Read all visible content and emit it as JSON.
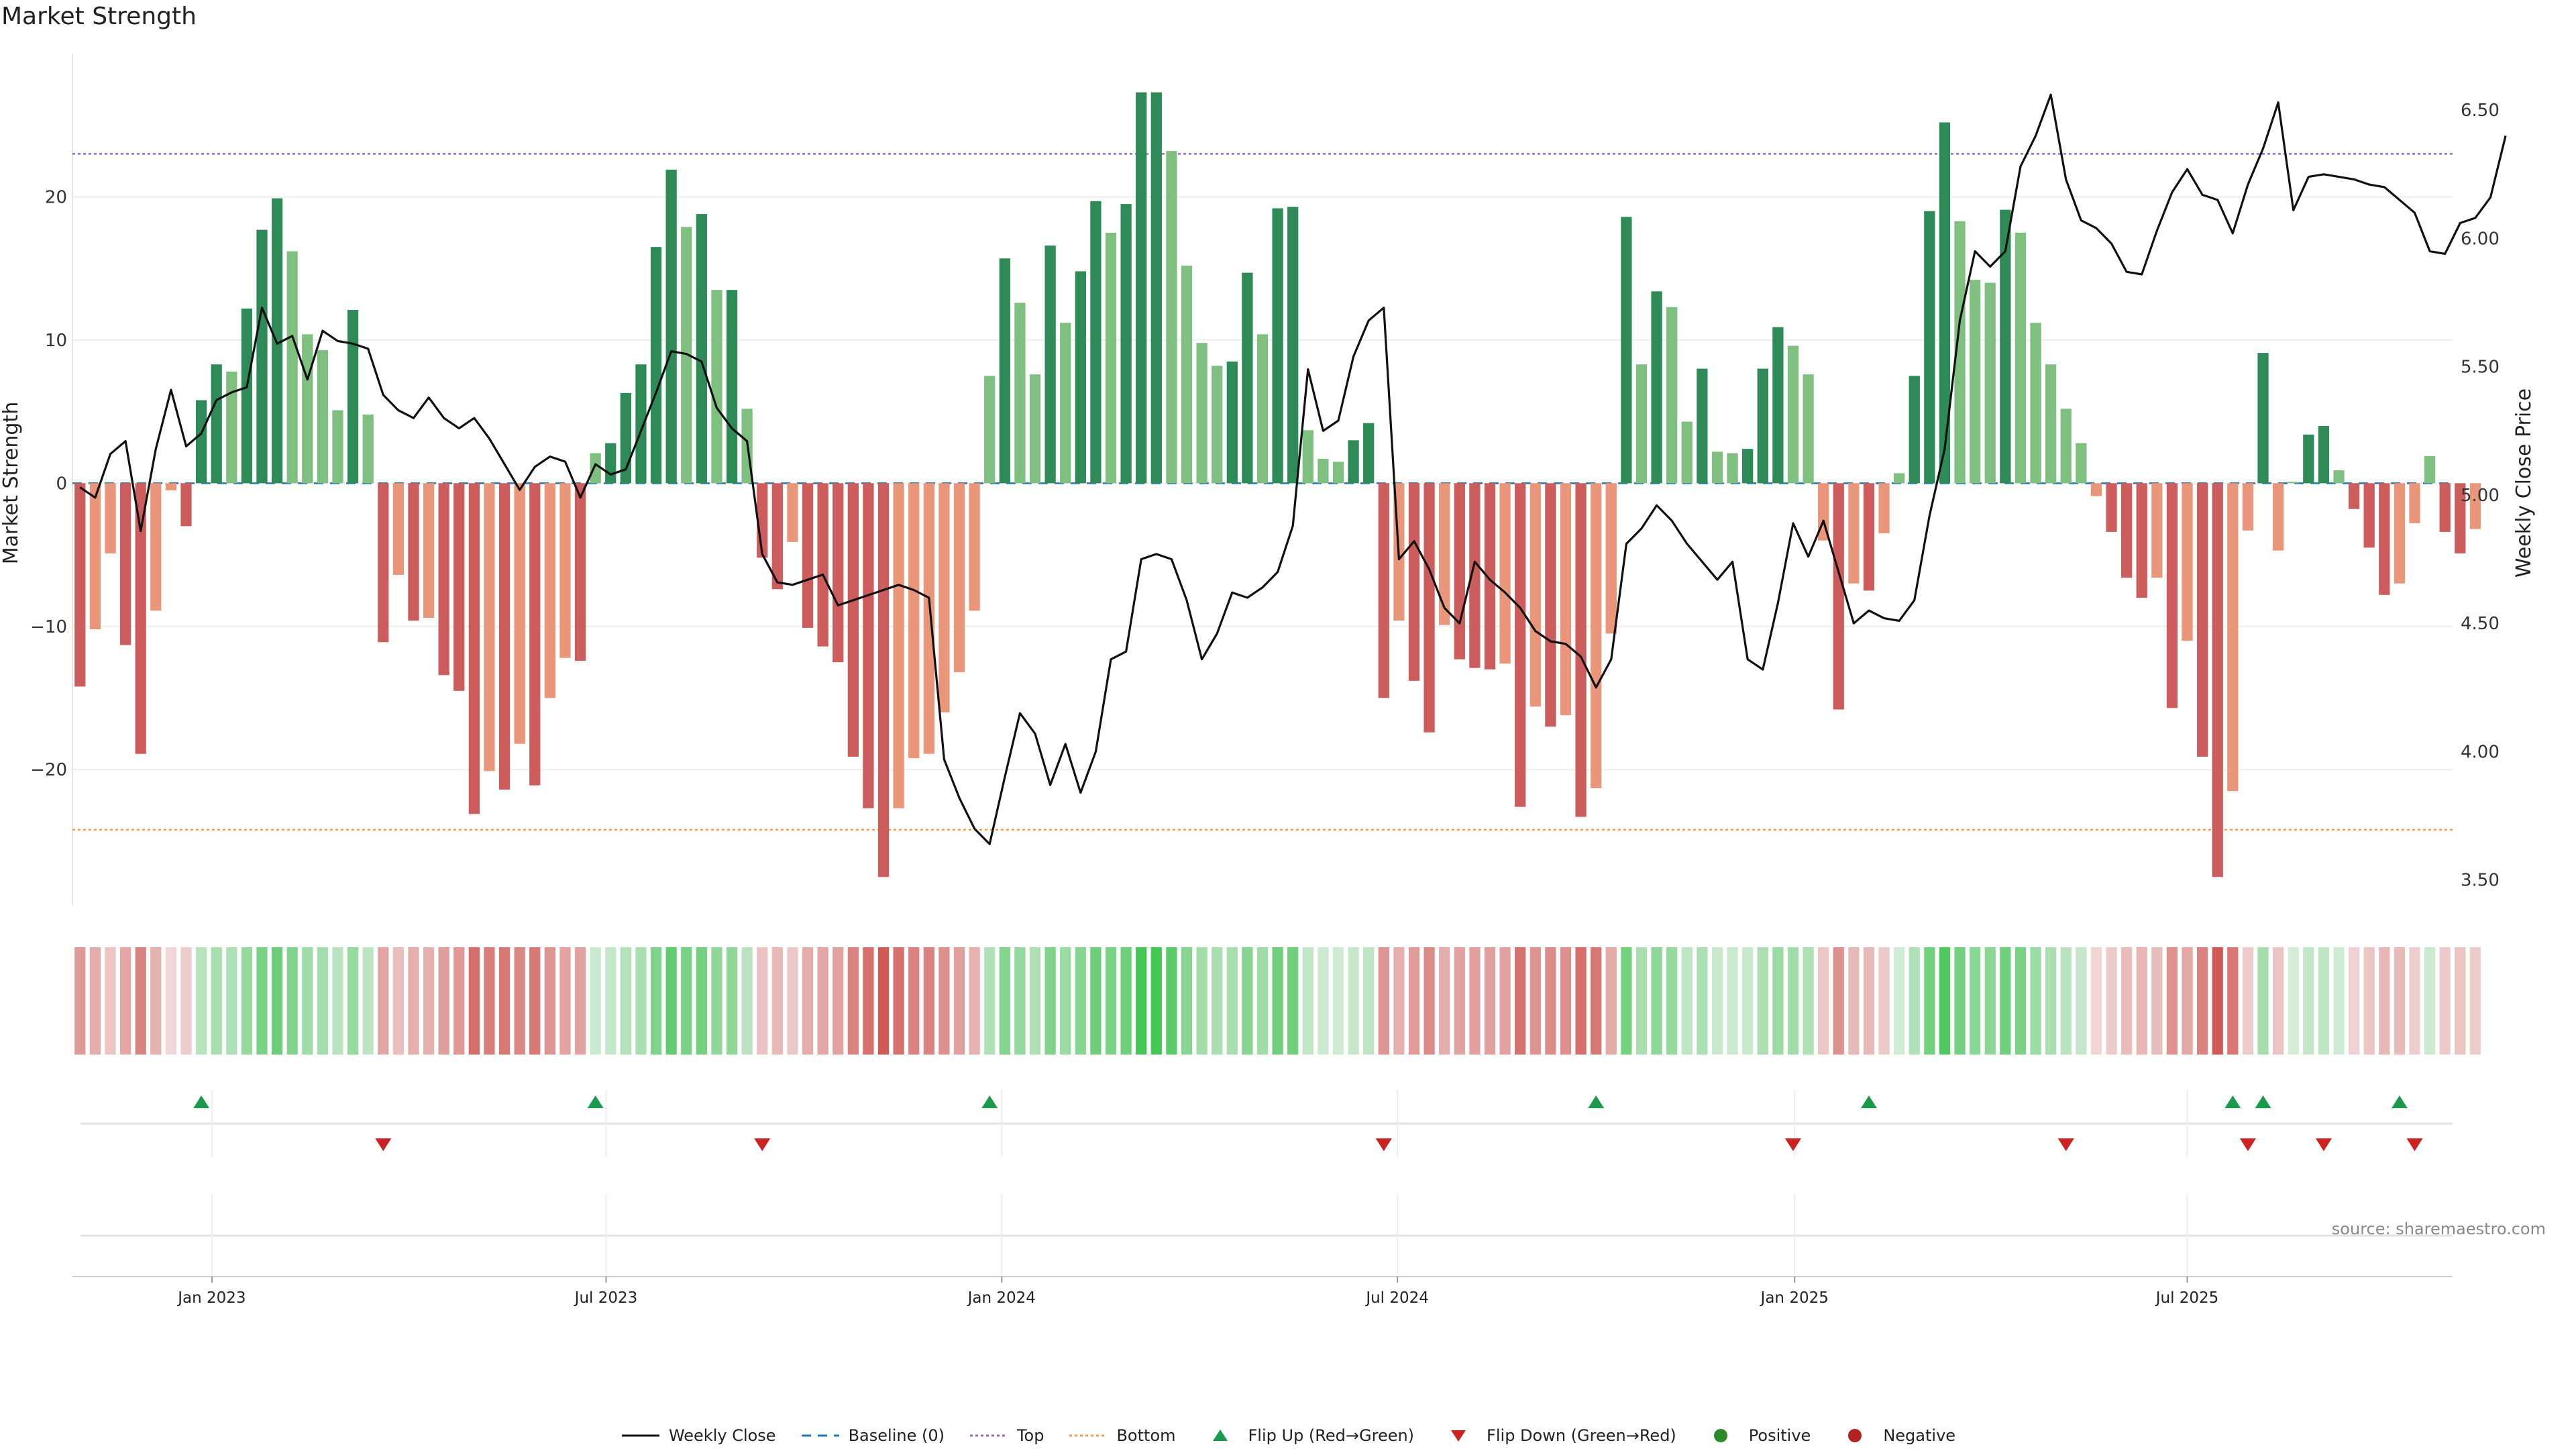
{
  "title": "Market Strength",
  "source": "source: sharemaestro.com",
  "colors": {
    "strong_green": "#2e8b57",
    "light_green": "#7fbf7f",
    "strong_red": "#cd5c5c",
    "light_red": "#e9967a",
    "line": "#111111",
    "baseline": "#1f77b4",
    "top": "#9467bd",
    "bottom": "#ff9a4d",
    "flip_up": "#1a9a4a",
    "flip_down": "#cc2222",
    "positive": "#2a8a2a",
    "negative": "#b22222"
  },
  "legend": [
    {
      "key": "line",
      "label": "Weekly Close"
    },
    {
      "key": "baseline",
      "label": "Baseline (0)"
    },
    {
      "key": "top",
      "label": "Top"
    },
    {
      "key": "bottom",
      "label": "Bottom"
    },
    {
      "key": "flip_up",
      "label": "Flip Up (Red→Green)"
    },
    {
      "key": "flip_down",
      "label": "Flip Down (Green→Red)"
    },
    {
      "key": "positive",
      "label": "Positive"
    },
    {
      "key": "negative",
      "label": "Negative"
    }
  ],
  "chart_data": {
    "type": "bar",
    "title": "Market Strength",
    "ylabel": "Market Strength",
    "y2label": "Weekly Close Price",
    "ylim": [
      -29.5,
      30
    ],
    "y2lim": [
      3.4,
      6.72
    ],
    "yticks": [
      -20,
      -10,
      0,
      10,
      20
    ],
    "y2ticks": [
      "3.50",
      "4.00",
      "4.50",
      "5.00",
      "5.50",
      "6.00",
      "6.50"
    ],
    "xlim": [
      0,
      157
    ],
    "x_ticks": [
      {
        "label": "Jan 2023",
        "week": 9.2
      },
      {
        "label": "Jul 2023",
        "week": 35.2
      },
      {
        "label": "Jan 2024",
        "week": 61.3
      },
      {
        "label": "Jul 2024",
        "week": 87.4
      },
      {
        "label": "Jan 2025",
        "week": 113.6
      },
      {
        "label": "Jul 2025",
        "week": 139.5
      }
    ],
    "top_level": 23,
    "bottom_level": -24.2,
    "baseline": 0,
    "strength": [
      -14.2,
      -10.2,
      -4.9,
      -11.3,
      -18.9,
      -8.9,
      -0.5,
      -3,
      5.8,
      8.3,
      7.8,
      12.2,
      17.7,
      19.9,
      16.2,
      10.4,
      9.3,
      5.1,
      12.1,
      4.8,
      -11.1,
      -6.4,
      -9.6,
      -9.4,
      -13.4,
      -14.5,
      -23.1,
      -20.1,
      -21.4,
      -18.2,
      -21.1,
      -15,
      -12.2,
      -12.4,
      2.1,
      2.8,
      6.3,
      8.3,
      16.5,
      21.9,
      17.9,
      18.8,
      13.5,
      13.5,
      5.2,
      -5.2,
      -7.4,
      -4.1,
      -10.1,
      -11.4,
      -12.5,
      -19.1,
      -22.7,
      -27.5,
      -22.7,
      -19.2,
      -18.9,
      -16,
      -13.2,
      -8.9,
      7.5,
      15.7,
      12.6,
      7.6,
      16.6,
      11.2,
      14.8,
      19.7,
      17.5,
      19.5,
      27.3,
      27.3,
      23.2,
      15.2,
      9.8,
      8.2,
      8.5,
      14.7,
      10.4,
      19.2,
      19.3,
      3.7,
      1.7,
      1.5,
      3,
      4.2,
      -15,
      -9.6,
      -13.8,
      -17.4,
      -9.9,
      -12.3,
      -12.9,
      -13,
      -12.6,
      -22.6,
      -15.6,
      -17,
      -16.2,
      -23.3,
      -21.3,
      -10.5,
      18.6,
      8.3,
      13.4,
      12.3,
      4.3,
      8,
      2.2,
      2.1,
      2.4,
      8,
      10.9,
      9.6,
      7.6,
      -4,
      -15.8,
      -7,
      -7.5,
      -3.5,
      0.7,
      7.5,
      19,
      25.2,
      18.3,
      14.2,
      14,
      19.1,
      17.5,
      11.2,
      8.3,
      5.2,
      2.8,
      -0.9,
      -3.4,
      -6.6,
      -8,
      -6.6,
      -15.7,
      -11,
      -19.1,
      -27.5,
      -21.5,
      -3.3,
      9.1,
      -4.7,
      0.1,
      3.4,
      4,
      0.9,
      -1.8,
      -4.5,
      -7.8,
      -7,
      -2.8,
      1.9,
      -3.4,
      -4.9,
      -3.2
    ],
    "weekly_close": [
      5.03,
      4.99,
      5.16,
      5.21,
      4.86,
      5.18,
      5.41,
      5.19,
      5.24,
      5.37,
      5.4,
      5.42,
      5.73,
      5.59,
      5.62,
      5.45,
      5.64,
      5.6,
      5.59,
      5.57,
      5.39,
      5.33,
      5.3,
      5.38,
      5.3,
      5.26,
      5.3,
      5.22,
      5.12,
      5.02,
      5.11,
      5.15,
      5.13,
      4.99,
      5.12,
      5.08,
      5.1,
      5.25,
      5.4,
      5.56,
      5.55,
      5.52,
      5.34,
      5.26,
      5.21,
      4.77,
      4.66,
      4.65,
      4.67,
      4.69,
      4.57,
      4.59,
      4.61,
      4.63,
      4.65,
      4.63,
      4.6,
      3.97,
      3.82,
      3.7,
      3.64,
      3.9,
      4.15,
      4.07,
      3.87,
      4.03,
      3.84,
      4.0,
      4.36,
      4.39,
      4.75,
      4.77,
      4.75,
      4.59,
      4.36,
      4.46,
      4.62,
      4.6,
      4.64,
      4.7,
      4.88,
      5.49,
      5.25,
      5.29,
      5.54,
      5.68,
      5.73,
      4.75,
      4.82,
      4.71,
      4.56,
      4.5,
      4.74,
      4.67,
      4.62,
      4.56,
      4.47,
      4.43,
      4.42,
      4.37,
      4.25,
      4.36,
      4.81,
      4.87,
      4.96,
      4.9,
      4.81,
      4.74,
      4.67,
      4.74,
      4.36,
      4.32,
      4.58,
      4.89,
      4.76,
      4.9,
      4.7,
      4.5,
      4.55,
      4.52,
      4.51,
      4.59,
      4.92,
      5.18,
      5.68,
      5.95,
      5.89,
      5.95,
      6.28,
      6.4,
      6.56,
      6.23,
      6.07,
      6.04,
      5.98,
      5.87,
      5.86,
      6.03,
      6.18,
      6.27,
      6.17,
      6.15,
      6.02,
      6.21,
      6.35,
      6.53,
      6.11,
      6.24,
      6.25,
      6.24,
      6.23,
      6.21,
      6.2,
      6.15,
      6.1,
      5.95,
      5.94,
      6.06,
      6.08,
      6.16,
      6.4
    ],
    "flip_up_weeks": [
      8.5,
      34.5,
      60.5,
      100.5,
      118.5,
      142.5,
      144.5,
      153.5
    ],
    "flip_down_weeks": [
      20.5,
      45.5,
      86.5,
      113.5,
      131.5,
      143.5,
      148.5,
      154.5
    ]
  }
}
